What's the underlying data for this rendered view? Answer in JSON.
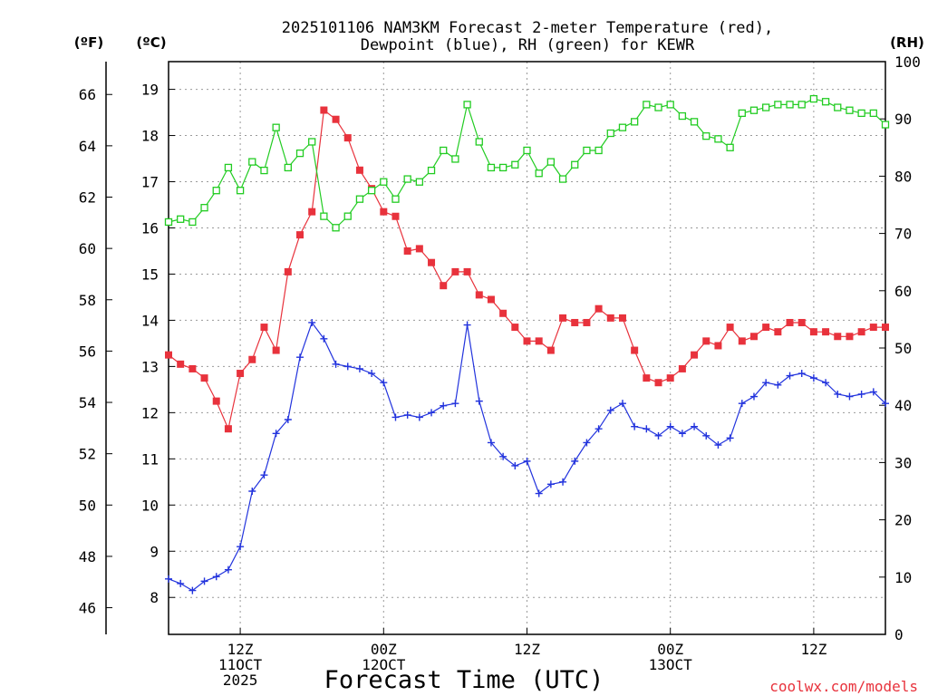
{
  "chart_data": {
    "type": "line",
    "title_line1": "2025101106 NAM3KM Forecast 2-meter Temperature (red),",
    "title_line2": "Dewpoint (blue), RH (green) for KEWR",
    "xlabel": "Forecast Time (UTC)",
    "credit": "coolwx.com/models",
    "units": {
      "f": "(ºF)",
      "c": "(ºC)",
      "rh": "(RH)"
    },
    "left_f_ticks": [
      "46",
      "48",
      "50",
      "52",
      "54",
      "56",
      "58",
      "60",
      "62",
      "64",
      "66"
    ],
    "left_c_ticks": [
      "8",
      "9",
      "10",
      "11",
      "12",
      "13",
      "14",
      "15",
      "16",
      "17",
      "18",
      "19"
    ],
    "right_rh_ticks": [
      "0",
      "10",
      "20",
      "30",
      "40",
      "50",
      "60",
      "70",
      "80",
      "90",
      "100"
    ],
    "x_ticks": [
      {
        "hour": 6,
        "line1": "12Z",
        "line2": "11OCT",
        "line3": "2025"
      },
      {
        "hour": 18,
        "line1": "00Z",
        "line2": "12OCT",
        "line3": ""
      },
      {
        "hour": 30,
        "line1": "12Z",
        "line2": "",
        "line3": ""
      },
      {
        "hour": 42,
        "line1": "00Z",
        "line2": "13OCT",
        "line3": ""
      },
      {
        "hour": 54,
        "line1": "12Z",
        "line2": "",
        "line3": ""
      }
    ],
    "x_range_hours": [
      0,
      60
    ],
    "ylim_c": [
      7.2,
      19.6
    ],
    "ylim_rh": [
      0,
      100
    ],
    "grid": true,
    "colors": {
      "temperature": "#e8323c",
      "dewpoint": "#2233dd",
      "rh": "#22cc22"
    },
    "series": [
      {
        "key": "temperature",
        "marker": "filled-square",
        "x": [
          0,
          1,
          2,
          3,
          4,
          5,
          6,
          7,
          8,
          9,
          10,
          11,
          12,
          13,
          14,
          15,
          16,
          17,
          18,
          19,
          20,
          21,
          22,
          23,
          24,
          25,
          26,
          27,
          28,
          29,
          30,
          31,
          32,
          33,
          34,
          35,
          36,
          37,
          38,
          39,
          40,
          41,
          42,
          43,
          44,
          45,
          46,
          47,
          48,
          49,
          50,
          51,
          52,
          53,
          54,
          55,
          56,
          57,
          58,
          59,
          60
        ],
        "values": [
          13.25,
          13.05,
          12.95,
          12.75,
          12.25,
          11.65,
          12.85,
          13.15,
          13.85,
          13.35,
          15.05,
          15.85,
          16.35,
          18.55,
          18.35,
          17.95,
          17.25,
          16.85,
          16.35,
          16.25,
          15.5,
          15.55,
          15.25,
          14.75,
          15.05,
          15.05,
          14.55,
          14.45,
          14.15,
          13.85,
          13.55,
          13.55,
          13.35,
          14.05,
          13.95,
          13.95,
          14.25,
          14.05,
          14.05,
          13.35,
          12.75,
          12.65,
          12.75,
          12.95,
          13.25,
          13.55,
          13.45,
          13.85,
          13.55,
          13.65,
          13.85,
          13.75,
          13.95,
          13.95,
          13.75,
          13.75,
          13.65,
          13.65,
          13.75,
          13.85,
          13.85
        ]
      },
      {
        "key": "dewpoint",
        "marker": "plus",
        "x": [
          0,
          1,
          2,
          3,
          4,
          5,
          6,
          7,
          8,
          9,
          10,
          11,
          12,
          13,
          14,
          15,
          16,
          17,
          18,
          19,
          20,
          21,
          22,
          23,
          24,
          25,
          26,
          27,
          28,
          29,
          30,
          31,
          32,
          33,
          34,
          35,
          36,
          37,
          38,
          39,
          40,
          41,
          42,
          43,
          44,
          45,
          46,
          47,
          48,
          49,
          50,
          51,
          52,
          53,
          54,
          55,
          56,
          57,
          58,
          59,
          60
        ],
        "values": [
          8.4,
          8.3,
          8.15,
          8.35,
          8.45,
          8.6,
          9.1,
          10.3,
          10.65,
          11.55,
          11.85,
          13.2,
          13.95,
          13.6,
          13.05,
          13.0,
          12.95,
          12.85,
          12.65,
          11.9,
          11.95,
          11.9,
          12.0,
          12.15,
          12.2,
          13.9,
          12.25,
          11.35,
          11.05,
          10.85,
          10.95,
          10.25,
          10.45,
          10.5,
          10.95,
          11.35,
          11.65,
          12.05,
          12.2,
          11.7,
          11.65,
          11.5,
          11.7,
          11.55,
          11.7,
          11.5,
          11.3,
          11.45,
          12.2,
          12.35,
          12.65,
          12.6,
          12.8,
          12.85,
          12.75,
          12.65,
          12.4,
          12.35,
          12.4,
          12.45,
          12.2
        ]
      },
      {
        "key": "rh",
        "marker": "open-square",
        "x": [
          0,
          1,
          2,
          3,
          4,
          5,
          6,
          7,
          8,
          9,
          10,
          11,
          12,
          13,
          14,
          15,
          16,
          17,
          18,
          19,
          20,
          21,
          22,
          23,
          24,
          25,
          26,
          27,
          28,
          29,
          30,
          31,
          32,
          33,
          34,
          35,
          36,
          37,
          38,
          39,
          40,
          41,
          42,
          43,
          44,
          45,
          46,
          47,
          48,
          49,
          50,
          51,
          52,
          53,
          54,
          55,
          56,
          57,
          58,
          59,
          60
        ],
        "values": [
          72,
          72.5,
          72,
          74.5,
          77.5,
          81.5,
          77.5,
          82.5,
          81,
          88.5,
          81.5,
          84,
          86,
          73,
          71,
          73,
          76,
          77.5,
          79,
          76,
          79.5,
          79,
          81,
          84.5,
          83,
          92.5,
          86,
          81.5,
          81.5,
          82,
          84.5,
          80.5,
          82.5,
          79.5,
          82,
          84.5,
          84.5,
          87.5,
          88.5,
          89.5,
          92.5,
          92,
          92.5,
          90.5,
          89.5,
          87,
          86.5,
          85,
          91,
          91.5,
          92,
          92.5,
          92.5,
          92.5,
          93.5,
          93,
          92,
          91.5,
          91,
          91,
          89
        ]
      }
    ]
  }
}
